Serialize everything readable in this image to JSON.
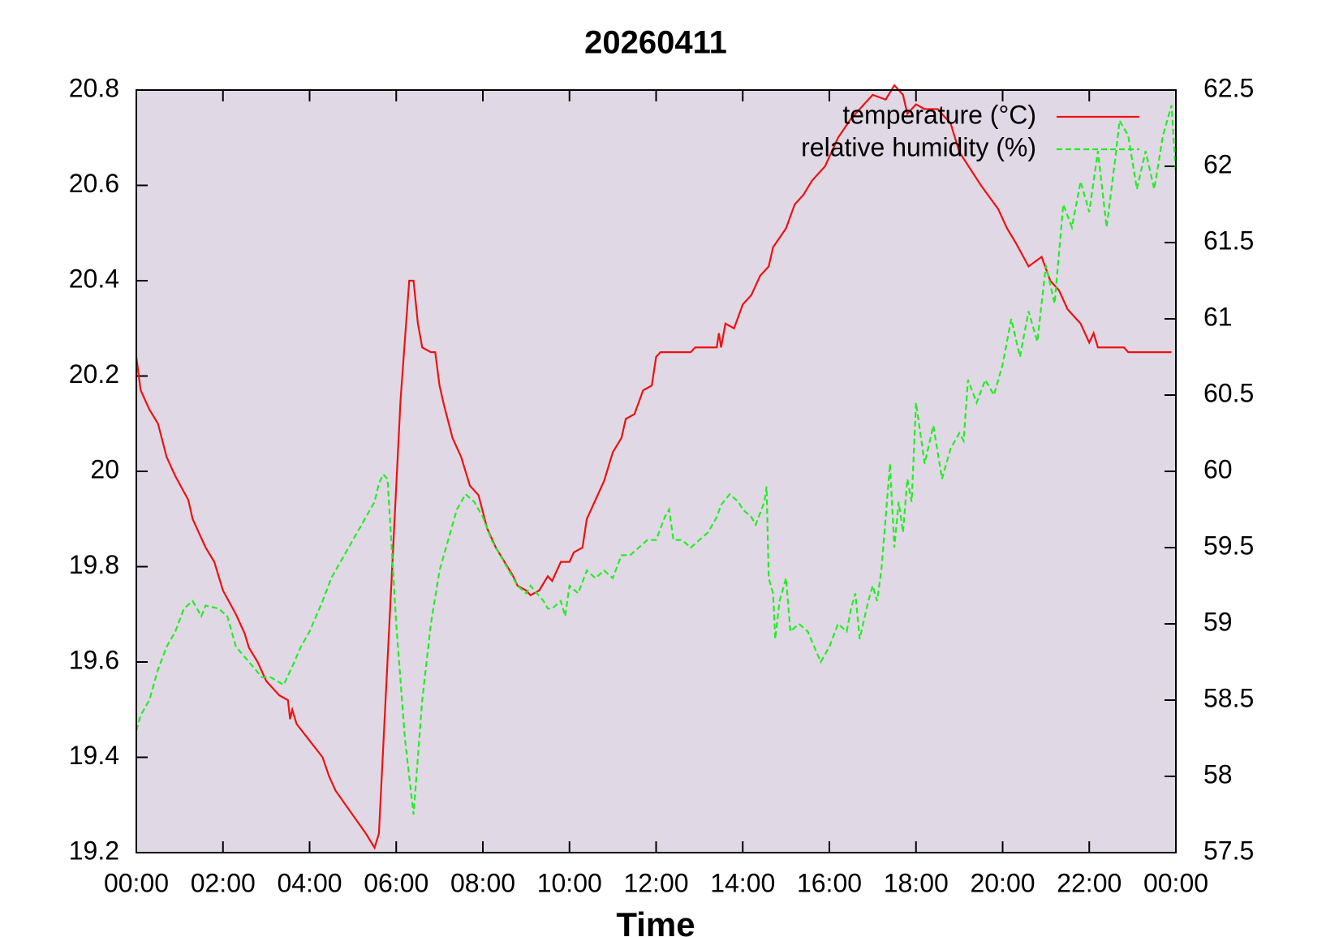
{
  "chart_data": {
    "type": "line",
    "title": "20260411",
    "x_label": "Time",
    "xlim": [
      0,
      24
    ],
    "xticks": [
      {
        "value": 0,
        "label": "00:00"
      },
      {
        "value": 2,
        "label": "02:00"
      },
      {
        "value": 4,
        "label": "04:00"
      },
      {
        "value": 6,
        "label": "06:00"
      },
      {
        "value": 8,
        "label": "08:00"
      },
      {
        "value": 10,
        "label": "10:00"
      },
      {
        "value": 12,
        "label": "12:00"
      },
      {
        "value": 14,
        "label": "14:00"
      },
      {
        "value": 16,
        "label": "16:00"
      },
      {
        "value": 18,
        "label": "18:00"
      },
      {
        "value": 20,
        "label": "20:00"
      },
      {
        "value": 22,
        "label": "22:00"
      },
      {
        "value": 24,
        "label": "00:00"
      }
    ],
    "ylim": [
      19.2,
      20.8
    ],
    "yticks": [
      19.2,
      19.4,
      19.6,
      19.8,
      {
        "value": 20,
        "label": "20"
      },
      20.2,
      20.4,
      20.6,
      20.8
    ],
    "y2lim": [
      57.5,
      62.5
    ],
    "y2ticks": [
      57.5,
      58,
      58.5,
      59,
      59.5,
      60,
      60.5,
      61,
      61.5,
      62,
      62.5
    ],
    "legend": "upper right",
    "background": "#e0d9e5",
    "series": [
      {
        "name": "temperature (°C)",
        "color": "#ee1111",
        "dash": false,
        "axis": "y",
        "x": [
          0,
          0.1,
          0.3,
          0.5,
          0.7,
          0.9,
          1.2,
          1.3,
          1.6,
          1.8,
          2.0,
          2.3,
          2.5,
          2.6,
          2.8,
          3.0,
          3.3,
          3.5,
          3.55,
          3.6,
          3.7,
          4.3,
          4.45,
          4.6,
          5.3,
          5.5,
          5.6,
          6.1,
          6.3,
          6.4,
          6.5,
          6.6,
          6.8,
          6.9,
          7.0,
          7.1,
          7.3,
          7.5,
          7.7,
          7.9,
          8.1,
          8.3,
          8.5,
          8.7,
          8.8,
          9.0,
          9.1,
          9.3,
          9.5,
          9.6,
          9.8,
          10.0,
          10.1,
          10.3,
          10.4,
          10.6,
          10.8,
          11.0,
          11.2,
          11.3,
          11.5,
          11.7,
          11.9,
          12.0,
          12.1,
          12.8,
          12.9,
          13.2,
          13.4,
          13.45,
          13.5,
          13.6,
          13.8,
          14.0,
          14.2,
          14.4,
          14.6,
          14.7,
          15.0,
          15.2,
          15.4,
          15.6,
          15.9,
          16.2,
          16.5,
          16.8,
          17.0,
          17.3,
          17.5,
          17.7,
          17.8,
          18.0,
          18.2,
          18.5,
          18.8,
          19.0,
          19.5,
          19.9,
          20.1,
          20.3,
          20.6,
          20.9,
          21.1,
          21.3,
          21.5,
          21.6,
          21.8,
          22.0,
          22.1,
          22.2,
          22.8,
          22.9,
          23.9
        ],
        "values": [
          20.24,
          20.17,
          20.13,
          20.1,
          20.03,
          19.99,
          19.94,
          19.9,
          19.84,
          19.81,
          19.75,
          19.7,
          19.66,
          19.63,
          19.6,
          19.56,
          19.53,
          19.52,
          19.48,
          19.5,
          19.47,
          19.4,
          19.36,
          19.33,
          19.24,
          19.21,
          19.24,
          20.15,
          20.4,
          20.4,
          20.31,
          20.26,
          20.25,
          20.25,
          20.18,
          20.14,
          20.07,
          20.03,
          19.97,
          19.95,
          19.88,
          19.84,
          19.81,
          19.78,
          19.76,
          19.75,
          19.74,
          19.75,
          19.78,
          19.77,
          19.81,
          19.81,
          19.83,
          19.84,
          19.9,
          19.94,
          19.98,
          20.04,
          20.07,
          20.11,
          20.12,
          20.17,
          20.18,
          20.24,
          20.25,
          20.25,
          20.26,
          20.26,
          20.26,
          20.29,
          20.26,
          20.31,
          20.3,
          20.35,
          20.37,
          20.41,
          20.43,
          20.47,
          20.51,
          20.56,
          20.58,
          20.61,
          20.64,
          20.7,
          20.74,
          20.77,
          20.79,
          20.78,
          20.81,
          20.79,
          20.75,
          20.77,
          20.76,
          20.76,
          20.73,
          20.67,
          20.6,
          20.55,
          20.51,
          20.48,
          20.43,
          20.45,
          20.4,
          20.38,
          20.34,
          20.33,
          20.31,
          20.27,
          20.29,
          20.26,
          20.26,
          20.25,
          20.25
        ]
      },
      {
        "name": "relative humidity (%)",
        "color": "#22ee22",
        "dash": true,
        "axis": "y2",
        "x": [
          0,
          0.1,
          0.3,
          0.5,
          0.7,
          0.9,
          1.1,
          1.3,
          1.5,
          1.6,
          1.9,
          2.1,
          2.3,
          2.6,
          2.9,
          3.1,
          3.4,
          3.6,
          3.8,
          4.0,
          4.3,
          4.5,
          4.8,
          5.0,
          5.3,
          5.5,
          5.6,
          5.7,
          5.8,
          6.0,
          6.2,
          6.4,
          6.6,
          6.8,
          7.0,
          7.2,
          7.4,
          7.6,
          7.8,
          8.0,
          8.2,
          8.5,
          8.8,
          9.0,
          9.1,
          9.4,
          9.5,
          9.6,
          9.8,
          9.9,
          10.0,
          10.2,
          10.4,
          10.6,
          10.8,
          11.0,
          11.2,
          11.4,
          11.8,
          12.0,
          12.2,
          12.3,
          12.4,
          12.6,
          12.8,
          13.0,
          13.2,
          13.4,
          13.5,
          13.7,
          13.9,
          14.0,
          14.2,
          14.3,
          14.5,
          14.55,
          14.6,
          14.7,
          14.75,
          14.85,
          15.0,
          15.1,
          15.3,
          15.5,
          15.8,
          16.0,
          16.2,
          16.4,
          16.5,
          16.6,
          16.7,
          16.9,
          17.0,
          17.1,
          17.2,
          17.3,
          17.4,
          17.5,
          17.6,
          17.7,
          17.8,
          17.9,
          18.0,
          18.2,
          18.4,
          18.6,
          18.8,
          19.0,
          19.1,
          19.2,
          19.4,
          19.6,
          19.8,
          20.0,
          20.2,
          20.4,
          20.6,
          20.8,
          21.0,
          21.2,
          21.4,
          21.6,
          21.8,
          22.0,
          22.2,
          22.4,
          22.6,
          22.7,
          22.9,
          23.1,
          23.3,
          23.5,
          23.7,
          23.9,
          24.0
        ],
        "values": [
          58.3,
          58.4,
          58.5,
          58.7,
          58.85,
          58.95,
          59.1,
          59.15,
          59.05,
          59.12,
          59.1,
          59.05,
          58.85,
          58.75,
          58.65,
          58.65,
          58.6,
          58.72,
          58.85,
          58.95,
          59.15,
          59.3,
          59.45,
          59.55,
          59.7,
          59.8,
          59.92,
          59.98,
          59.95,
          59.0,
          58.25,
          57.75,
          58.5,
          59.0,
          59.35,
          59.55,
          59.75,
          59.85,
          59.8,
          59.7,
          59.55,
          59.4,
          59.25,
          59.2,
          59.25,
          59.15,
          59.1,
          59.1,
          59.15,
          59.05,
          59.25,
          59.2,
          59.35,
          59.3,
          59.35,
          59.3,
          59.45,
          59.45,
          59.55,
          59.55,
          59.7,
          59.75,
          59.55,
          59.55,
          59.5,
          59.55,
          59.6,
          59.7,
          59.78,
          59.85,
          59.8,
          59.75,
          59.7,
          59.65,
          59.8,
          59.9,
          59.3,
          59.2,
          58.9,
          59.15,
          59.3,
          58.95,
          59.0,
          58.95,
          58.75,
          58.85,
          59.0,
          58.95,
          59.1,
          59.2,
          58.9,
          59.15,
          59.25,
          59.15,
          59.35,
          59.7,
          60.05,
          59.5,
          59.8,
          59.6,
          59.95,
          59.8,
          60.45,
          60.05,
          60.3,
          59.95,
          60.15,
          60.25,
          60.2,
          60.6,
          60.45,
          60.6,
          60.5,
          60.7,
          61.0,
          60.75,
          61.05,
          60.85,
          61.35,
          61.1,
          61.75,
          61.6,
          61.9,
          61.7,
          62.1,
          61.6,
          62.05,
          62.3,
          62.2,
          61.85,
          62.1,
          61.85,
          62.2,
          62.4,
          61.95
        ]
      }
    ]
  }
}
